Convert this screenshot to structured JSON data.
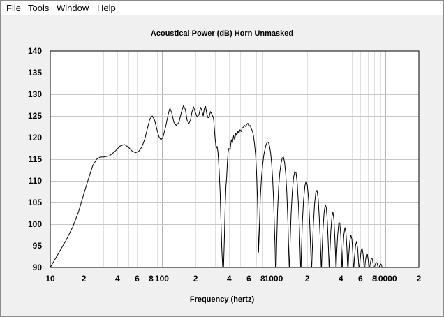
{
  "menu": {
    "items": [
      "File",
      "Tools",
      "Window",
      "Help"
    ]
  },
  "chart_data": {
    "type": "line",
    "title": "Acoustical Power (dB)   Horn   Unmasked",
    "xlabel": "Frequency (hertz)",
    "ylabel": "",
    "x_scale": "log",
    "xlim": [
      10,
      20000
    ],
    "ylim": [
      90,
      140
    ],
    "grid": true,
    "y_ticks": [
      90,
      95,
      100,
      105,
      110,
      115,
      120,
      125,
      130,
      135,
      140
    ],
    "x_ticks": [
      {
        "value": 10,
        "label": "10"
      },
      {
        "value": 20,
        "label": "2"
      },
      {
        "value": 40,
        "label": "4"
      },
      {
        "value": 60,
        "label": "6"
      },
      {
        "value": 80,
        "label": "8"
      },
      {
        "value": 100,
        "label": "100"
      },
      {
        "value": 200,
        "label": "2"
      },
      {
        "value": 400,
        "label": "4"
      },
      {
        "value": 600,
        "label": "6"
      },
      {
        "value": 800,
        "label": "8"
      },
      {
        "value": 1000,
        "label": "1000"
      },
      {
        "value": 2000,
        "label": "2"
      },
      {
        "value": 4000,
        "label": "4"
      },
      {
        "value": 6000,
        "label": "6"
      },
      {
        "value": 8000,
        "label": "8"
      },
      {
        "value": 10000,
        "label": "10000"
      },
      {
        "value": 20000,
        "label": "2"
      }
    ],
    "series": [
      {
        "color": "#000000",
        "points": [
          [
            10,
            90.0
          ],
          [
            12,
            93.5
          ],
          [
            14,
            96.5
          ],
          [
            16,
            99.5
          ],
          [
            18,
            103
          ],
          [
            20,
            107
          ],
          [
            22,
            110.5
          ],
          [
            24,
            113.5
          ],
          [
            26,
            115
          ],
          [
            28,
            115.5
          ],
          [
            30,
            115.5
          ],
          [
            34,
            115.8
          ],
          [
            38,
            116.8
          ],
          [
            42,
            118
          ],
          [
            46,
            118.4
          ],
          [
            50,
            117.8
          ],
          [
            54,
            116.9
          ],
          [
            58,
            116.5
          ],
          [
            62,
            116.8
          ],
          [
            66,
            117.8
          ],
          [
            70,
            119.5
          ],
          [
            74,
            122
          ],
          [
            78,
            124.3
          ],
          [
            82,
            125
          ],
          [
            86,
            124
          ],
          [
            90,
            122
          ],
          [
            94,
            120.2
          ],
          [
            98,
            119.5
          ],
          [
            102,
            120
          ],
          [
            108,
            122.5
          ],
          [
            114,
            125.5
          ],
          [
            118,
            126.8
          ],
          [
            122,
            125.8
          ],
          [
            128,
            123.5
          ],
          [
            134,
            122.8
          ],
          [
            142,
            123.5
          ],
          [
            150,
            126
          ],
          [
            156,
            127.4
          ],
          [
            162,
            126.5
          ],
          [
            168,
            124
          ],
          [
            174,
            123.2
          ],
          [
            180,
            124
          ],
          [
            186,
            126
          ],
          [
            192,
            127.1
          ],
          [
            198,
            126
          ],
          [
            206,
            124.8
          ],
          [
            214,
            125.2
          ],
          [
            222,
            127
          ],
          [
            228,
            126.2
          ],
          [
            234,
            125
          ],
          [
            240,
            126.8
          ],
          [
            246,
            127.2
          ],
          [
            252,
            125.5
          ],
          [
            258,
            124.6
          ],
          [
            264,
            124.6
          ],
          [
            272,
            126
          ],
          [
            280,
            125.4
          ],
          [
            290,
            124.4
          ],
          [
            300,
            119.5
          ],
          [
            306,
            117.5
          ],
          [
            312,
            118
          ],
          [
            318,
            116.5
          ],
          [
            326,
            112
          ],
          [
            332,
            107.5
          ],
          [
            338,
            100
          ],
          [
            344,
            94
          ],
          [
            350,
            90
          ],
          [
            356,
            90
          ],
          [
            362,
            96
          ],
          [
            368,
            104
          ],
          [
            374,
            108.5
          ],
          [
            380,
            111
          ],
          [
            386,
            114.5
          ],
          [
            392,
            116.8
          ],
          [
            398,
            117.5
          ],
          [
            408,
            117.2
          ],
          [
            418,
            119.5
          ],
          [
            428,
            118.8
          ],
          [
            438,
            120.5
          ],
          [
            448,
            119.5
          ],
          [
            458,
            121
          ],
          [
            468,
            120.5
          ],
          [
            480,
            121.5
          ],
          [
            490,
            121
          ],
          [
            500,
            121.8
          ],
          [
            512,
            121.4
          ],
          [
            524,
            122.2
          ],
          [
            536,
            122.4
          ],
          [
            550,
            122.8
          ],
          [
            562,
            122.5
          ],
          [
            574,
            123
          ],
          [
            588,
            123.3
          ],
          [
            602,
            122.6
          ],
          [
            616,
            122.8
          ],
          [
            630,
            122.1
          ],
          [
            646,
            121.5
          ],
          [
            660,
            120.5
          ],
          [
            675,
            118.5
          ],
          [
            690,
            116
          ],
          [
            705,
            111.5
          ],
          [
            720,
            104
          ],
          [
            733,
            93.5
          ],
          [
            745,
            99
          ],
          [
            760,
            106
          ],
          [
            780,
            111
          ],
          [
            800,
            114
          ],
          [
            820,
            116.2
          ],
          [
            840,
            117.5
          ],
          [
            860,
            118.5
          ],
          [
            880,
            119
          ],
          [
            900,
            118.8
          ],
          [
            920,
            118
          ],
          [
            940,
            116.5
          ],
          [
            960,
            114
          ],
          [
            980,
            110.5
          ],
          [
            1000,
            105.5
          ],
          [
            1015,
            100
          ],
          [
            1030,
            94.5
          ],
          [
            1040,
            90
          ],
          [
            1055,
            90
          ],
          [
            1065,
            95.5
          ],
          [
            1085,
            103
          ],
          [
            1110,
            108.5
          ],
          [
            1135,
            111.8
          ],
          [
            1165,
            114
          ],
          [
            1195,
            115.3
          ],
          [
            1225,
            115.5
          ],
          [
            1255,
            114.2
          ],
          [
            1285,
            111.5
          ],
          [
            1315,
            107
          ],
          [
            1345,
            100
          ],
          [
            1365,
            94
          ],
          [
            1380,
            90
          ],
          [
            1390,
            90
          ],
          [
            1405,
            95.5
          ],
          [
            1435,
            102.5
          ],
          [
            1470,
            107.5
          ],
          [
            1510,
            110.8
          ],
          [
            1550,
            112.2
          ],
          [
            1590,
            111.8
          ],
          [
            1630,
            109.3
          ],
          [
            1670,
            104.5
          ],
          [
            1705,
            98.5
          ],
          [
            1730,
            93
          ],
          [
            1745,
            90
          ],
          [
            1760,
            90
          ],
          [
            1775,
            94
          ],
          [
            1810,
            100.5
          ],
          [
            1855,
            105.5
          ],
          [
            1905,
            108.8
          ],
          [
            1955,
            110
          ],
          [
            2005,
            109
          ],
          [
            2055,
            106
          ],
          [
            2100,
            101
          ],
          [
            2140,
            95.5
          ],
          [
            2170,
            91
          ],
          [
            2180,
            90
          ],
          [
            2195,
            90
          ],
          [
            2215,
            93
          ],
          [
            2265,
            99.5
          ],
          [
            2325,
            104.5
          ],
          [
            2385,
            107.3
          ],
          [
            2445,
            107.8
          ],
          [
            2505,
            106
          ],
          [
            2565,
            101.5
          ],
          [
            2615,
            96.5
          ],
          [
            2655,
            92
          ],
          [
            2670,
            90
          ],
          [
            2690,
            90
          ],
          [
            2710,
            93.5
          ],
          [
            2770,
            99
          ],
          [
            2835,
            102.8
          ],
          [
            2900,
            104.5
          ],
          [
            2965,
            103.8
          ],
          [
            3030,
            100.5
          ],
          [
            3085,
            95.5
          ],
          [
            3125,
            91.5
          ],
          [
            3140,
            90
          ],
          [
            3160,
            90
          ],
          [
            3185,
            93
          ],
          [
            3255,
            98.5
          ],
          [
            3330,
            101.8
          ],
          [
            3400,
            102.8
          ],
          [
            3470,
            101
          ],
          [
            3535,
            97
          ],
          [
            3590,
            92.5
          ],
          [
            3610,
            90
          ],
          [
            3640,
            90
          ],
          [
            3670,
            93
          ],
          [
            3750,
            97.5
          ],
          [
            3835,
            100.3
          ],
          [
            3915,
            100.3
          ],
          [
            3995,
            97.5
          ],
          [
            4060,
            93
          ],
          [
            4090,
            90
          ],
          [
            4120,
            90
          ],
          [
            4160,
            93
          ],
          [
            4255,
            97.5
          ],
          [
            4355,
            99.2
          ],
          [
            4450,
            98
          ],
          [
            4535,
            94.5
          ],
          [
            4590,
            90.5
          ],
          [
            4610,
            90
          ],
          [
            4650,
            90
          ],
          [
            4700,
            92.5
          ],
          [
            4810,
            96
          ],
          [
            4920,
            97.5
          ],
          [
            5030,
            96.5
          ],
          [
            5130,
            93
          ],
          [
            5185,
            90
          ],
          [
            5230,
            90
          ],
          [
            5290,
            92
          ],
          [
            5410,
            95
          ],
          [
            5530,
            96
          ],
          [
            5650,
            94.5
          ],
          [
            5760,
            91.5
          ],
          [
            5810,
            90
          ],
          [
            5870,
            90
          ],
          [
            5940,
            91.5
          ],
          [
            6070,
            93.8
          ],
          [
            6200,
            94.5
          ],
          [
            6330,
            93
          ],
          [
            6450,
            90.5
          ],
          [
            6480,
            90
          ],
          [
            6560,
            90
          ],
          [
            6640,
            91.5
          ],
          [
            6780,
            93
          ],
          [
            6920,
            93
          ],
          [
            7050,
            91.5
          ],
          [
            7140,
            90
          ],
          [
            7250,
            90
          ],
          [
            7340,
            91
          ],
          [
            7500,
            92
          ],
          [
            7650,
            92
          ],
          [
            7790,
            90.8
          ],
          [
            7850,
            90
          ],
          [
            7990,
            90
          ],
          [
            8100,
            90.5
          ],
          [
            8280,
            91.2
          ],
          [
            8460,
            91
          ],
          [
            8600,
            90.2
          ],
          [
            8640,
            90
          ],
          [
            8800,
            90
          ],
          [
            8930,
            90.5
          ],
          [
            9100,
            90.8
          ],
          [
            9260,
            90.6
          ],
          [
            9350,
            90
          ]
        ]
      }
    ]
  }
}
